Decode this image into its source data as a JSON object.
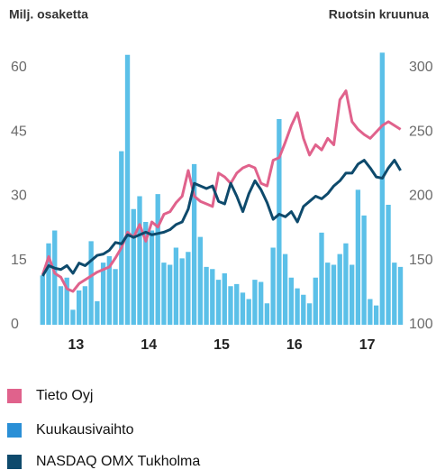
{
  "chart_data": {
    "type": "bar",
    "y_label": "Milj. osaketta",
    "y2_label": "Ruotsin kruunua",
    "xticks": [
      "13",
      "14",
      "15",
      "16",
      "17"
    ],
    "ylim": [
      0,
      60
    ],
    "yticks": [
      0,
      15,
      30,
      45,
      60
    ],
    "y2lim": [
      100,
      300
    ],
    "y2ticks": [
      100,
      150,
      200,
      250,
      300
    ],
    "grid": false,
    "series": [
      {
        "name": "Tieto Oyj",
        "color": "#e0628c",
        "axis": "y2",
        "type": "line",
        "values": [
          139,
          153,
          140,
          137,
          128,
          126,
          132,
          135,
          138,
          141,
          143,
          145,
          152,
          160,
          172,
          168,
          178,
          165,
          180,
          176,
          186,
          188,
          195,
          200,
          220,
          200,
          196,
          194,
          192,
          218,
          215,
          210,
          218,
          222,
          224,
          222,
          210,
          208,
          228,
          230,
          242,
          255,
          265,
          245,
          232,
          240,
          236,
          245,
          240,
          275,
          282,
          258,
          252,
          248,
          245,
          250,
          255,
          258,
          255,
          252
        ]
      },
      {
        "name": "Kuukausivaihto",
        "color": "#5bc0e8",
        "legend_color": "#2a8fd6",
        "type": "bar",
        "values": [
          11.5,
          19,
          22,
          9,
          11,
          3.5,
          8,
          9,
          19.5,
          5.5,
          14.5,
          16,
          13,
          40.5,
          63,
          27,
          30,
          24,
          22,
          30.5,
          14.5,
          14,
          18,
          15.5,
          17,
          37.5,
          20.5,
          13.5,
          13,
          10.5,
          12,
          9,
          9.5,
          7.5,
          6,
          10.5,
          10,
          5,
          18,
          48,
          16.5,
          11,
          8.5,
          7,
          5,
          11,
          21.5,
          14.5,
          14,
          16.5,
          19,
          14,
          31.5,
          25.5,
          6,
          4.5,
          63.5,
          28,
          14.5,
          13.5
        ]
      },
      {
        "name": "NASDAQ OMX Tukholma",
        "color": "#0e4a6c",
        "axis": "y2",
        "type": "line",
        "values": [
          138,
          146,
          144,
          143,
          146,
          140,
          148,
          146,
          150,
          154,
          155,
          158,
          164,
          163,
          170,
          168,
          170,
          172,
          170,
          171,
          172,
          174,
          178,
          180,
          190,
          210,
          208,
          206,
          208,
          196,
          194,
          210,
          200,
          188,
          202,
          212,
          205,
          195,
          182,
          186,
          184,
          188,
          180,
          192,
          196,
          200,
          198,
          202,
          208,
          212,
          218,
          218,
          225,
          228,
          222,
          215,
          214,
          222,
          228,
          220
        ]
      }
    ]
  }
}
